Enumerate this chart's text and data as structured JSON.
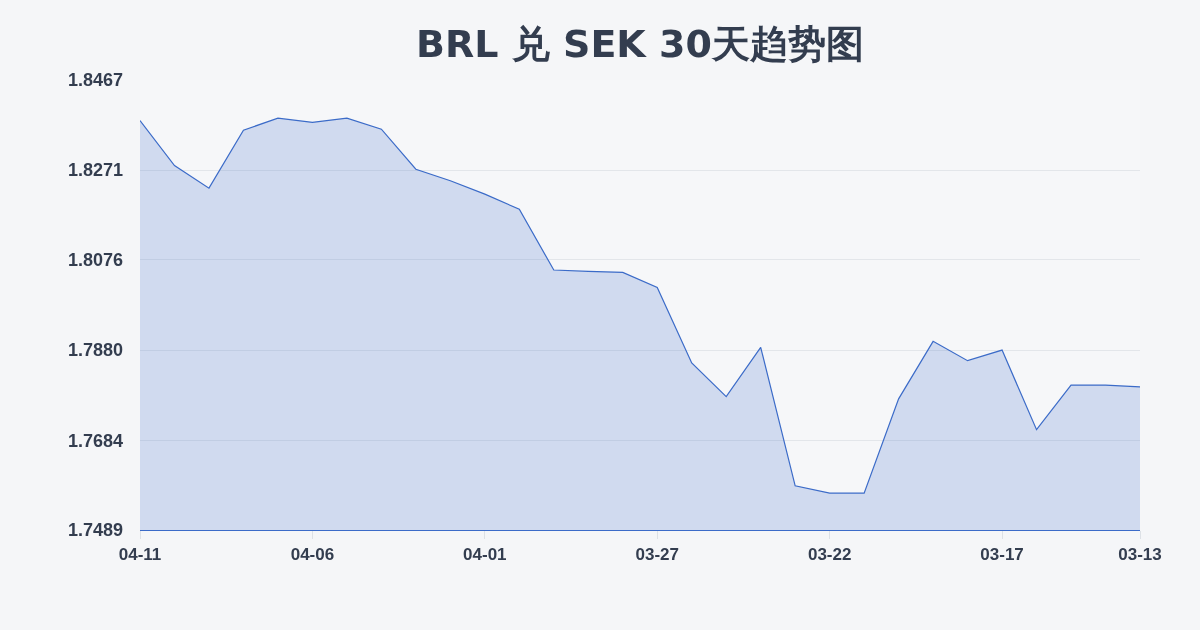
{
  "chart_data": {
    "type": "area",
    "title": "BRL 兑 SEK 30天趋势图",
    "categories": [
      "04-11",
      null,
      null,
      null,
      null,
      "04-06",
      null,
      null,
      null,
      null,
      "04-01",
      null,
      null,
      null,
      null,
      "03-27",
      null,
      null,
      null,
      null,
      "03-22",
      null,
      null,
      null,
      null,
      "03-17",
      null,
      null,
      null,
      "03-13"
    ],
    "values": [
      1.8379,
      1.8281,
      1.8232,
      1.8358,
      1.8384,
      1.8375,
      1.8384,
      1.836,
      1.8273,
      1.8248,
      1.8219,
      1.8186,
      1.8054,
      1.8051,
      1.8049,
      1.8016,
      1.7852,
      1.7779,
      1.7886,
      1.7585,
      1.7569,
      1.7569,
      1.7774,
      1.7899,
      1.7857,
      1.788,
      1.7707,
      1.7804,
      1.7804,
      1.78
    ],
    "color": "#3b6bc8",
    "ylim": [
      1.7489,
      1.8467
    ],
    "yticks": [
      1.7489,
      1.7684,
      {
        "value": 1.788,
        "label": "1.7880"
      },
      1.8076,
      1.8271,
      1.8467
    ],
    "grid": "y"
  }
}
